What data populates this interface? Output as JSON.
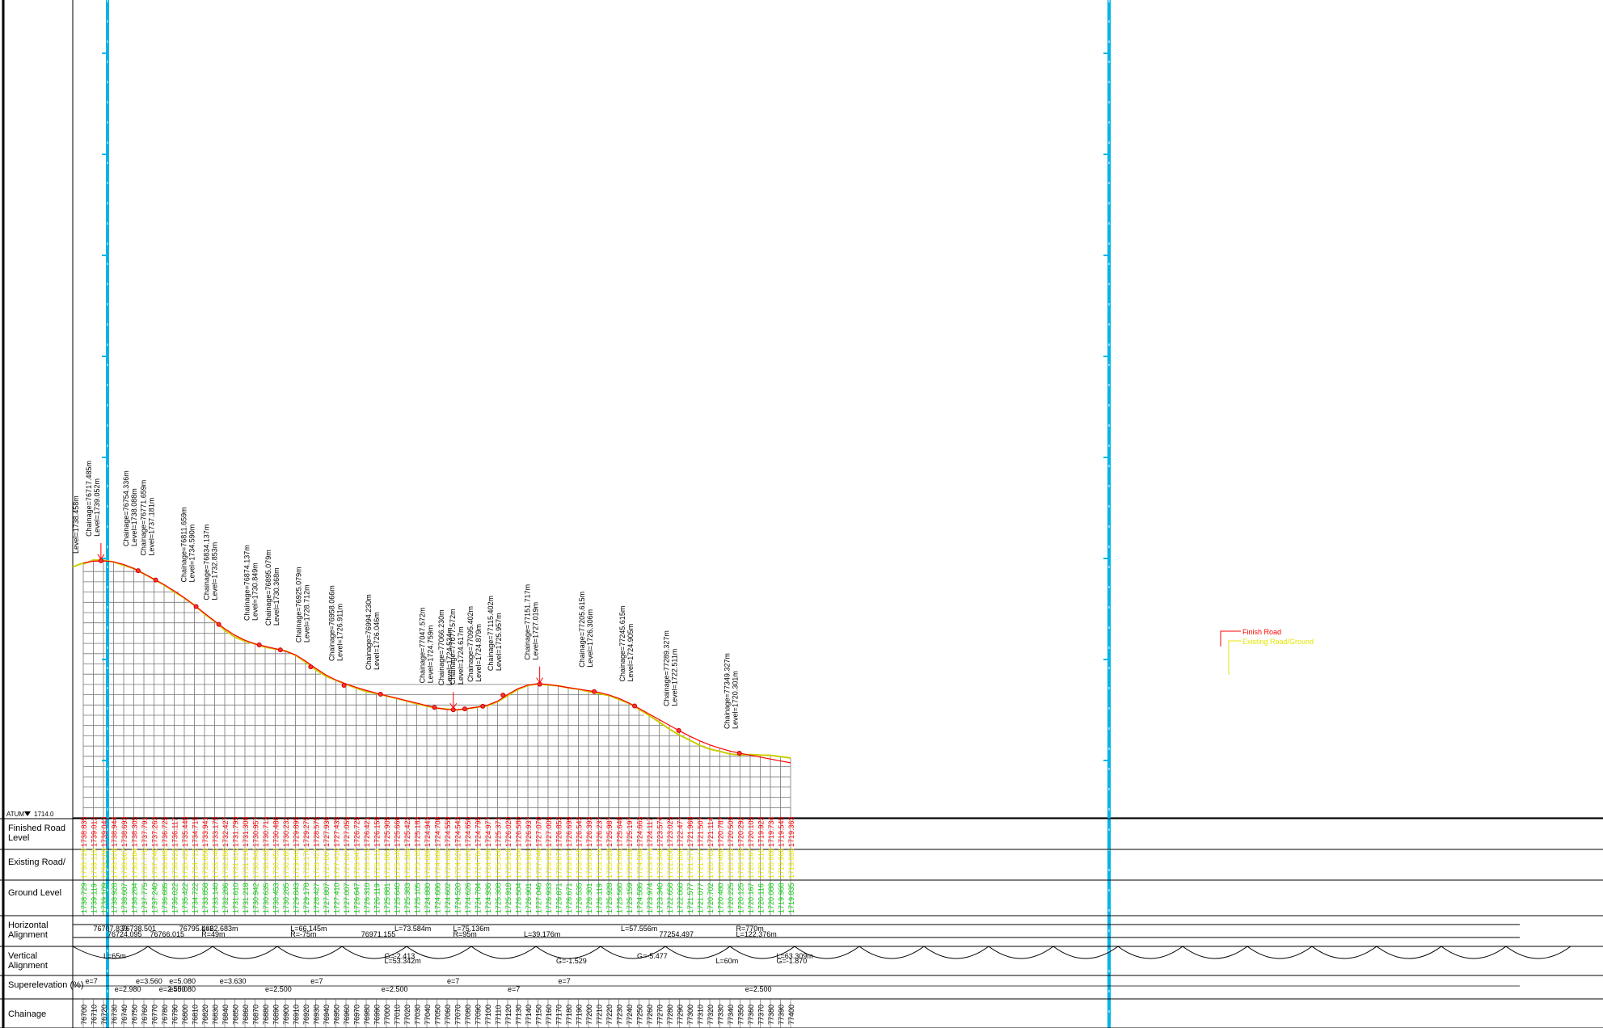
{
  "datum": {
    "label": "ATUM",
    "value": "1714.0"
  },
  "level_top_annotation": "Level=1738.458m",
  "row_labels": {
    "finished": [
      "Finished Road",
      "Level"
    ],
    "existing": [
      "Existing Road/"
    ],
    "ground": [
      "Ground Level"
    ],
    "horizontal": [
      "Horizontal",
      "Alignment"
    ],
    "vertical": [
      "Vertical",
      "Alignment"
    ],
    "superelevation": [
      "Superelevation (%)"
    ],
    "chainage": [
      "Chainage"
    ]
  },
  "legend": {
    "finish": "Finish Road",
    "existing": "Existing Road/Ground"
  },
  "colors": {
    "finish": "#ff0000",
    "existing": "#ffff00",
    "ground": "#00cc00",
    "grid": "#777777",
    "cyan": "#00b4e6"
  },
  "chainages": [
    "76700",
    "76710",
    "76720",
    "76730",
    "76740",
    "76750",
    "76760",
    "76770",
    "76780",
    "76790",
    "76800",
    "76810",
    "76820",
    "76830",
    "76840",
    "76850",
    "76860",
    "76870",
    "76880",
    "76890",
    "76900",
    "76910",
    "76920",
    "76930",
    "76940",
    "76950",
    "76960",
    "76970",
    "76980",
    "76990",
    "77000",
    "77010",
    "77020",
    "77030",
    "77040",
    "77050",
    "77060",
    "77070",
    "77080",
    "77090",
    "77100",
    "77110",
    "77120",
    "77130",
    "77140",
    "77150",
    "77160",
    "77170",
    "77180",
    "77190",
    "77200",
    "77210",
    "77220",
    "77230",
    "77240",
    "77250",
    "77260",
    "77270",
    "77280",
    "77290",
    "77300",
    "77310",
    "77320",
    "77330",
    "77340",
    "77350",
    "77360",
    "77370",
    "77380",
    "77390",
    "77400"
  ],
  "finished_levels": [
    "1738.835",
    "1739.012",
    "1739.043",
    "1738.944",
    "1738.693",
    "1738.305",
    "1737.791",
    "1737.263",
    "1736.725",
    "1736.117",
    "1735.448",
    "1734.715",
    "1733.941",
    "1733.175",
    "1732.427",
    "1731.799",
    "1731.308",
    "1730.957",
    "1730.713",
    "1730.486",
    "1730.232",
    "1729.895",
    "1729.275",
    "1728.575",
    "1727.936",
    "1727.435",
    "1727.055",
    "1726.725",
    "1726.421",
    "1726.159",
    "1725.905",
    "1725.666",
    "1725.422",
    "1725.183",
    "1724.943",
    "1724.708",
    "1724.559",
    "1724.543",
    "1724.650",
    "1724.795",
    "1724.977",
    "1725.371",
    "1726.020",
    "1726.580",
    "1726.937",
    "1727.070",
    "1727.005",
    "1726.853",
    "1726.699",
    "1726.543",
    "1726.393",
    "1726.237",
    "1725.987",
    "1725.648",
    "1725.197",
    "1724.663",
    "1724.117",
    "1723.574",
    "1723.025",
    "1722.477",
    "1721.968",
    "1721.507",
    "1721.114",
    "1720.787",
    "1720.509",
    "1720.292",
    "1720.105",
    "1719.923",
    "1719.734",
    "1719.545",
    "1719.363"
  ],
  "ground_levels": [
    "1738.729",
    "1739.119",
    "1739.109",
    "1738.928",
    "1738.607",
    "1738.284",
    "1737.775",
    "1737.240",
    "1736.685",
    "1736.022",
    "1735.422",
    "1734.722",
    "1733.858",
    "1733.140",
    "1732.286",
    "1731.610",
    "1731.218",
    "1730.942",
    "1730.635",
    "1730.453",
    "1730.285",
    "1729.843",
    "1729.178",
    "1728.427",
    "1727.807",
    "1727.410",
    "1727.007",
    "1726.647",
    "1726.310",
    "1726.119",
    "1725.881",
    "1725.640",
    "1725.383",
    "1725.105",
    "1724.880",
    "1724.686",
    "1724.602",
    "1724.520",
    "1724.626",
    "1724.784",
    "1724.936",
    "1725.308",
    "1725.918",
    "1726.504",
    "1726.901",
    "1727.046",
    "1726.933",
    "1726.871",
    "1726.671",
    "1726.535",
    "1726.301",
    "1726.119",
    "1725.928",
    "1725.560",
    "1725.159",
    "1724.586",
    "1723.974",
    "1723.340",
    "1722.658",
    "1722.060",
    "1721.577",
    "1721.077",
    "1720.702",
    "1720.480",
    "1720.225",
    "1720.125",
    "1720.167",
    "1720.116",
    "1720.088",
    "1719.968",
    "1719.835"
  ],
  "annotations": [
    {
      "ch": "76717.485",
      "lvl": "1739.052",
      "ch_label": "Chainage=76717.485m",
      "lvl_label": "Level=1739.052m"
    },
    {
      "ch": "76754.336",
      "lvl": "1738.088",
      "ch_label": "Chainage=76754.336m",
      "lvl_label": "Level=1738.088m"
    },
    {
      "ch": "76771.659",
      "lvl": "1737.181",
      "ch_label": "Chainage=76771.659m",
      "lvl_label": "Level=1737.181m"
    },
    {
      "ch": "76811.659",
      "lvl": "1734.590",
      "ch_label": "Chainage=76811.659m",
      "lvl_label": "Level=1734.590m"
    },
    {
      "ch": "76834.137",
      "lvl": "1732.853",
      "ch_label": "Chainage=76834.137m",
      "lvl_label": "Level=1732.853m"
    },
    {
      "ch": "76874.137",
      "lvl": "1730.849",
      "ch_label": "Chainage=76874.137m",
      "lvl_label": "Level=1730.849m"
    },
    {
      "ch": "76895.079",
      "lvl": "1730.368",
      "ch_label": "Chainage=76895.079m",
      "lvl_label": "Level=1730.368m"
    },
    {
      "ch": "76925.079",
      "lvl": "1728.712",
      "ch_label": "Chainage=76925.079m",
      "lvl_label": "Level=1728.712m"
    },
    {
      "ch": "76958.066",
      "lvl": "1726.911",
      "ch_label": "Chainage=76958.066m",
      "lvl_label": "Level=1726.911m"
    },
    {
      "ch": "76994.230",
      "lvl": "1726.046",
      "ch_label": "Chainage=76994.230m",
      "lvl_label": "Level=1726.046m"
    },
    {
      "ch": "77047.572",
      "lvl": "1724.759",
      "ch_label": "Chainage=77047.572m",
      "lvl_label": "Level=1724.759m"
    },
    {
      "ch": "77066.230",
      "lvl": "1724.534",
      "ch_label": "Chainage=77066.230m",
      "lvl_label": "Level=1724.534m"
    },
    {
      "ch": "77077.572",
      "lvl": "1724.617",
      "ch_label": "Chainage=77077.572m",
      "lvl_label": "Level=1724.617m"
    },
    {
      "ch": "77095.402",
      "lvl": "1724.879",
      "ch_label": "Chainage=77095.402m",
      "lvl_label": "Level=1724.879m"
    },
    {
      "ch": "77115.402",
      "lvl": "1725.957",
      "ch_label": "Chainage=77115.402m",
      "lvl_label": "Level=1725.957m"
    },
    {
      "ch": "77151.717",
      "lvl": "1727.019",
      "ch_label": "Chainage=77151.717m",
      "lvl_label": "Level=1727.019m"
    },
    {
      "ch": "77205.615",
      "lvl": "1726.306",
      "ch_label": "Chainage=77205.615m",
      "lvl_label": "Level=1726.306m"
    },
    {
      "ch": "77245.615",
      "lvl": "1724.905",
      "ch_label": "Chainage=77245.615m",
      "lvl_label": "Level=1724.905m"
    },
    {
      "ch": "77289.327",
      "lvl": "1722.511",
      "ch_label": "Chainage=77289.327m",
      "lvl_label": "Level=1722.511m"
    },
    {
      "ch": "77349.327",
      "lvl": "1720.301",
      "ch_label": "Chainage=77349.327m",
      "lvl_label": "Level=1720.301m"
    }
  ],
  "horizontal_alignment": [
    {
      "ch": "76710",
      "text": "76707.839"
    },
    {
      "ch": "76724",
      "text": "76724.095"
    },
    {
      "ch": "76738",
      "text": "76738.501"
    },
    {
      "ch": "76766",
      "text": "76766.015"
    },
    {
      "ch": "76795",
      "text": "76795.462"
    },
    {
      "ch": "76817",
      "text": "R=49m"
    },
    {
      "ch": "76817",
      "text": "L=62.683m"
    },
    {
      "ch": "76905",
      "text": "R=-75m"
    },
    {
      "ch": "76905",
      "text": "L=66.145m"
    },
    {
      "ch": "76975",
      "text": "76971.155"
    },
    {
      "ch": "77008",
      "text": "L=73.584m"
    },
    {
      "ch": "77066",
      "text": "R=95m"
    },
    {
      "ch": "77066",
      "text": "L=75.136m"
    },
    {
      "ch": "77136",
      "text": "L=39.176m"
    },
    {
      "ch": "77232",
      "text": "L=57.556m"
    },
    {
      "ch": "77270",
      "text": "77254.497"
    },
    {
      "ch": "77346",
      "text": "R=770m"
    },
    {
      "ch": "77346",
      "text": "L=122.376m"
    }
  ],
  "vertical_alignment": [
    {
      "ch": "76720",
      "text": "L=65m"
    },
    {
      "ch": "76998",
      "text": "L=53.342m"
    },
    {
      "ch": "76998",
      "text": "G=-2.413"
    },
    {
      "ch": "77168",
      "text": "G=-1.529"
    },
    {
      "ch": "77248",
      "text": "G=-5.477"
    },
    {
      "ch": "77326",
      "text": "L=60m"
    },
    {
      "ch": "77386",
      "text": "L=63.309m"
    },
    {
      "ch": "77386",
      "text": "G=-1.870"
    }
  ],
  "superelevation": [
    {
      "ch": "76702",
      "text": "e=7"
    },
    {
      "ch": "76731",
      "text": "e=2.980"
    },
    {
      "ch": "76752",
      "text": "e=3.560"
    },
    {
      "ch": "76775",
      "text": "e=2.500"
    },
    {
      "ch": "76785",
      "text": "e=5.080"
    },
    {
      "ch": "76785",
      "text": "e=5.080"
    },
    {
      "ch": "76835",
      "text": "e=3.630"
    },
    {
      "ch": "76880",
      "text": "e=2.500"
    },
    {
      "ch": "76925",
      "text": "e=7"
    },
    {
      "ch": "76995",
      "text": "e=2.500"
    },
    {
      "ch": "77060",
      "text": "e=7"
    },
    {
      "ch": "77120",
      "text": "e=7"
    },
    {
      "ch": "77170",
      "text": "e=7"
    },
    {
      "ch": "77355",
      "text": "e=2.500"
    }
  ]
}
